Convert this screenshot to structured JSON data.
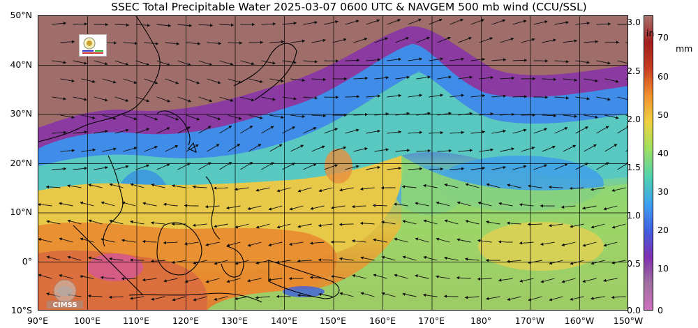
{
  "title": "SSEC Total Precipitable Water  2025-03-07 0600 UTC & NAVGEM 500 mb wind (CCU/SSL)",
  "latitude_labels": [
    "50°N",
    "40°N",
    "30°N",
    "20°N",
    "10°N",
    "0°",
    "10°S"
  ],
  "longitude_labels": [
    "90°E",
    "100°E",
    "110°E",
    "120°E",
    "130°E",
    "140°E",
    "150°E",
    "160°E",
    "170°E",
    "180°",
    "170°W",
    "160°W",
    "150°W"
  ],
  "colorbar": {
    "inch_unit": "in",
    "mm_unit": "mm",
    "inch_ticks": [
      "3.0",
      "2.5",
      "2.0",
      "1.5",
      "1.0",
      "0.5",
      "0.0"
    ],
    "mm_ticks": [
      "70",
      "60",
      "50",
      "40",
      "30",
      "20",
      "10",
      "0"
    ],
    "colors": [
      "#a86f6a",
      "#a01f1f",
      "#c84020",
      "#f09030",
      "#f0d040",
      "#a0e060",
      "#50d0b0",
      "#40a0f0",
      "#4060e0",
      "#8030b0",
      "#a070a0",
      "#d070c0"
    ]
  },
  "logos": {
    "top_left": "SSEC logo",
    "bottom_left": "CIMSS"
  },
  "icons": [
    "ssec-logo-icon",
    "cimss-logo-icon",
    "wind-arrow-icon"
  ]
}
